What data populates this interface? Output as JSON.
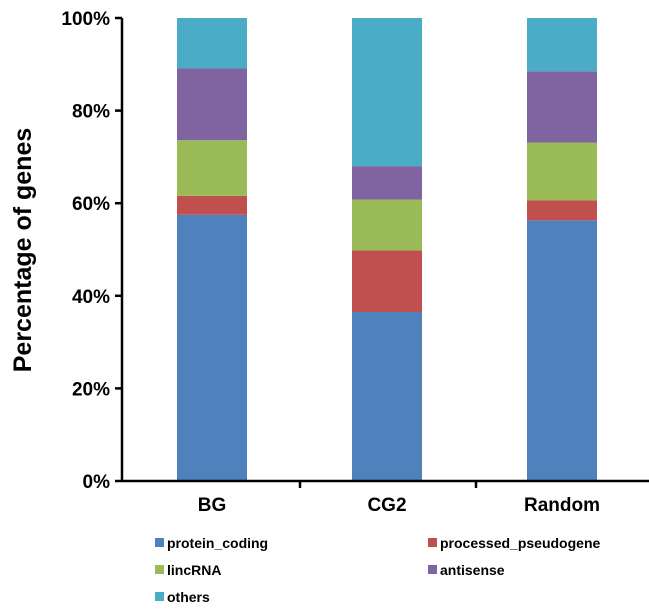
{
  "chart_data": {
    "type": "bar",
    "stacked": true,
    "percent_axis": true,
    "title": "",
    "xlabel": "",
    "ylabel": "Percentage of genes",
    "ylim": [
      0,
      100
    ],
    "yticks": [
      "0%",
      "20%",
      "40%",
      "60%",
      "80%",
      "100%"
    ],
    "categories": [
      "BG",
      "CG2",
      "Random"
    ],
    "series": [
      {
        "name": "protein_coding",
        "color": "#4F81BD",
        "values": [
          57.5,
          36.5,
          56.3
        ]
      },
      {
        "name": "processed_pseudogene",
        "color": "#C0504D",
        "values": [
          4.1,
          13.3,
          4.3
        ]
      },
      {
        "name": "lincRNA",
        "color": "#9BBB59",
        "values": [
          12.0,
          11.0,
          12.5
        ]
      },
      {
        "name": "antisense",
        "color": "#8064A2",
        "values": [
          15.5,
          7.2,
          15.4
        ]
      },
      {
        "name": "others",
        "color": "#4BACC6",
        "values": [
          10.9,
          32.0,
          11.5
        ]
      }
    ],
    "grid": false,
    "legend_position": "bottom"
  }
}
